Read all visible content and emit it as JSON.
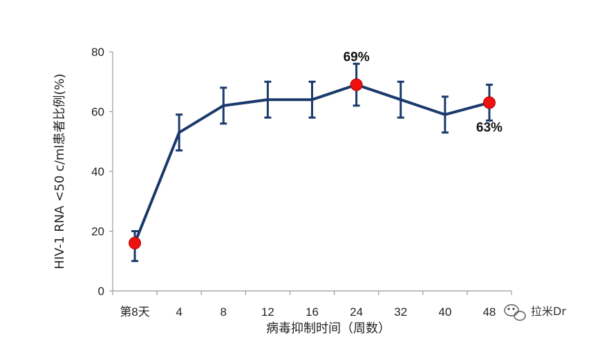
{
  "chart_data": {
    "type": "line",
    "categories": [
      "第8天",
      "4",
      "8",
      "12",
      "16",
      "24",
      "32",
      "40",
      "48"
    ],
    "series": [
      {
        "values": [
          16,
          53,
          62,
          64,
          64,
          69,
          64,
          59,
          63
        ],
        "error_low": [
          10,
          47,
          56,
          58,
          58,
          62,
          58,
          53,
          57
        ],
        "error_high": [
          20,
          59,
          68,
          70,
          70,
          76,
          70,
          65,
          69
        ]
      }
    ],
    "highlight_indices": [
      0,
      5,
      8
    ],
    "xlabel": "病毒抑制时间（周数）",
    "ylabel": "HIV-1 RNA <50 c/ml患者比例(%)",
    "ylim": [
      0,
      80
    ],
    "yticks": [
      0,
      20,
      40,
      60,
      80
    ],
    "annotations": [
      {
        "index": 5,
        "text": "69%",
        "placement": "above"
      },
      {
        "index": 8,
        "text": "63%",
        "placement": "below"
      }
    ],
    "colors": {
      "line": "#1a3a6b",
      "highlight": "#ee1111",
      "axis": "#999999"
    },
    "grid": false
  },
  "watermark": {
    "icon": "wechat-bubble-icon",
    "text": "拉米Dr"
  }
}
